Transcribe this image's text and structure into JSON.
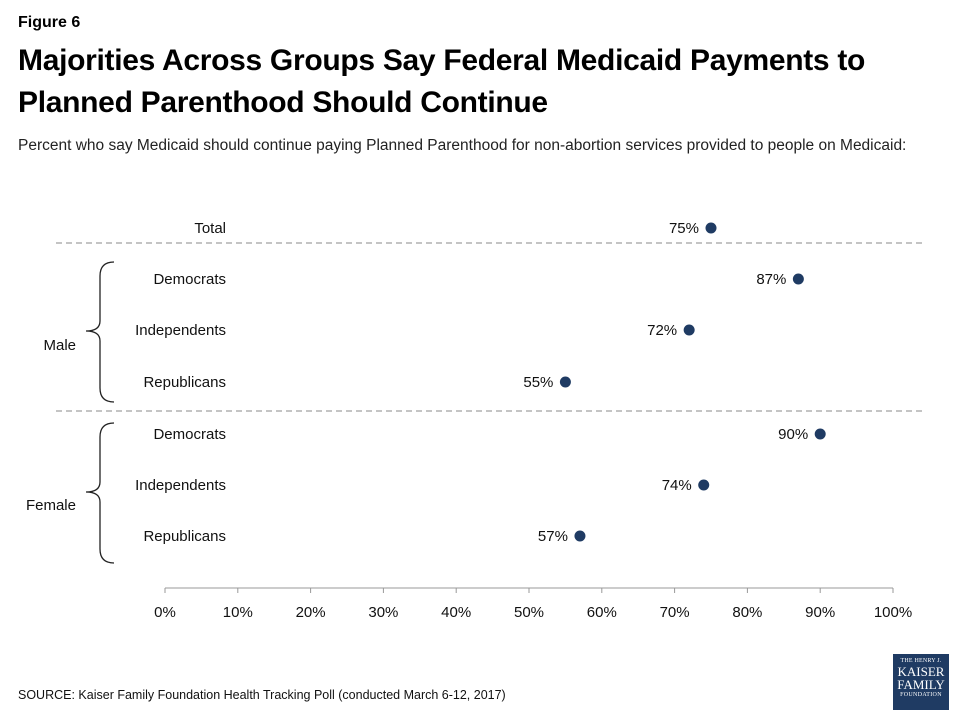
{
  "figure_label": "Figure 6",
  "title": "Majorities Across Groups Say Federal Medicaid Payments to Planned Parenthood Should Continue",
  "subtitle": "Percent who say Medicaid should continue paying Planned Parenthood for non-abortion services provided to people on Medicaid:",
  "source": "SOURCE: Kaiser Family Foundation Health Tracking Poll (conducted March 6-12, 2017)",
  "logo": {
    "line1": "THE HENRY J.",
    "line2": "KAISER",
    "line3": "FAMILY",
    "line4": "FOUNDATION"
  },
  "colors": {
    "dot": "#1f3b63",
    "axis": "#999999",
    "divider": "#888888"
  },
  "chart_data": {
    "type": "scatter",
    "title": "",
    "xlabel": "",
    "ylabel": "",
    "xlim": [
      0,
      100
    ],
    "x_ticks": [
      "0%",
      "10%",
      "20%",
      "30%",
      "40%",
      "50%",
      "60%",
      "70%",
      "80%",
      "90%",
      "100%"
    ],
    "value_suffix": "%",
    "grid": false,
    "legend": "none",
    "groups": [
      {
        "name": "",
        "rows": [
          {
            "label": "Total",
            "value": 75
          }
        ]
      },
      {
        "name": "Male",
        "rows": [
          {
            "label": "Democrats",
            "value": 87
          },
          {
            "label": "Independents",
            "value": 72
          },
          {
            "label": "Republicans",
            "value": 55
          }
        ]
      },
      {
        "name": "Female",
        "rows": [
          {
            "label": "Democrats",
            "value": 90
          },
          {
            "label": "Independents",
            "value": 74
          },
          {
            "label": "Republicans",
            "value": 57
          }
        ]
      }
    ]
  }
}
